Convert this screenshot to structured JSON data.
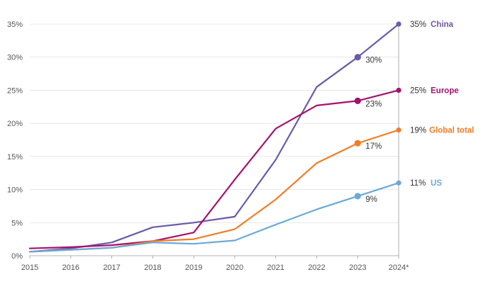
{
  "chart_data": {
    "type": "line",
    "x": [
      "2015",
      "2016",
      "2017",
      "2018",
      "2019",
      "2020",
      "2021",
      "2022",
      "2023",
      "2024*"
    ],
    "ylim": [
      0,
      35
    ],
    "yticks": [
      "0%",
      "5%",
      "10%",
      "15%",
      "20%",
      "25%",
      "30%",
      "35%"
    ],
    "ytick_values": [
      0,
      5,
      10,
      15,
      20,
      25,
      30,
      35
    ],
    "grid": "horizontal",
    "series": [
      {
        "name": "China",
        "color": "#6b5aa8",
        "values": [
          0.6,
          1.1,
          2.0,
          4.3,
          5.0,
          5.9,
          14.5,
          25.5,
          30.0,
          35.0
        ],
        "marker_label": "30%",
        "end_value_label": "35%"
      },
      {
        "name": "Europe",
        "color": "#a3126f",
        "values": [
          1.1,
          1.3,
          1.6,
          2.2,
          3.5,
          11.5,
          19.2,
          22.7,
          23.4,
          25.0
        ],
        "marker_label": "23%",
        "end_value_label": "25%"
      },
      {
        "name": "Global total",
        "color": "#f07d27",
        "values": [
          0.6,
          0.9,
          1.2,
          2.2,
          2.5,
          4.0,
          8.5,
          14.0,
          17.0,
          19.0
        ],
        "marker_label": "17%",
        "end_value_label": "19%"
      },
      {
        "name": "US",
        "color": "#6aa9d8",
        "values": [
          0.6,
          0.9,
          1.2,
          2.0,
          1.8,
          2.3,
          4.7,
          7.0,
          9.0,
          11.0
        ],
        "marker_label": "9%",
        "end_value_label": "11%"
      }
    ]
  }
}
